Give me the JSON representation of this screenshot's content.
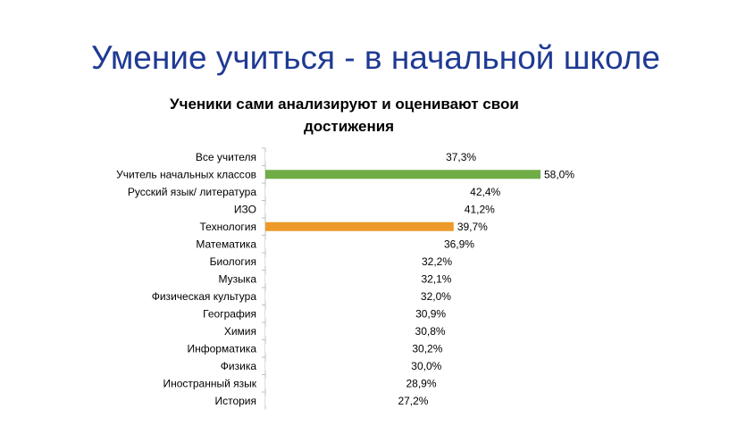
{
  "slide": {
    "title": "Умение учиться - в начальной школе"
  },
  "chart_data": {
    "type": "bar",
    "orientation": "horizontal",
    "title_line1": "Ученики сами анализируют и оценивают свои",
    "title_line2": "достижения",
    "categories": [
      "Все учителя",
      "Учитель начальных классов",
      "Русский язык/ литература",
      "ИЗО",
      "Технология",
      "Математика",
      "Биология",
      "Музыка",
      "Физическая культура",
      "География",
      "Химия",
      "Информатика",
      "Физика",
      "Иностранный язык",
      "История"
    ],
    "values": [
      37.3,
      58.0,
      42.4,
      41.2,
      39.7,
      36.9,
      32.2,
      32.1,
      32.0,
      30.9,
      30.8,
      30.2,
      30.0,
      28.9,
      27.2
    ],
    "value_labels": [
      "37,3%",
      "58,0%",
      "42,4%",
      "41,2%",
      "39,7%",
      "36,9%",
      "32,2%",
      "32,1%",
      "32,0%",
      "30,9%",
      "30,8%",
      "30,2%",
      "30,0%",
      "28,9%",
      "27,2%"
    ],
    "highlight": [
      {
        "category": "Учитель начальных классов",
        "color": "#70ad47"
      },
      {
        "category": "Технология",
        "color": "#ed9a2a"
      }
    ],
    "default_bar_color": "#ffffff",
    "xlim": [
      0,
      58
    ],
    "grid": false,
    "legend": "none"
  }
}
